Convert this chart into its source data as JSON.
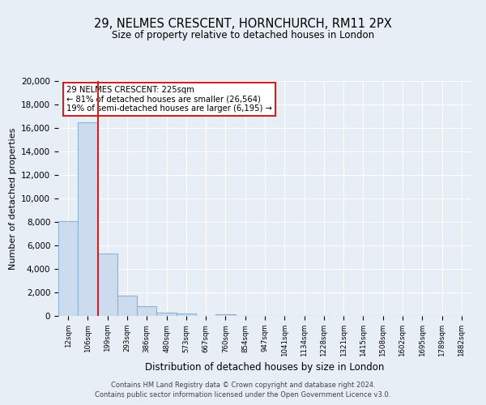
{
  "title": "29, NELMES CRESCENT, HORNCHURCH, RM11 2PX",
  "subtitle": "Size of property relative to detached houses in London",
  "xlabel": "Distribution of detached houses by size in London",
  "ylabel": "Number of detached properties",
  "bar_labels": [
    "12sqm",
    "106sqm",
    "199sqm",
    "293sqm",
    "386sqm",
    "480sqm",
    "573sqm",
    "667sqm",
    "760sqm",
    "854sqm",
    "947sqm",
    "1041sqm",
    "1134sqm",
    "1228sqm",
    "1321sqm",
    "1415sqm",
    "1508sqm",
    "1602sqm",
    "1695sqm",
    "1789sqm",
    "1882sqm"
  ],
  "bar_heights": [
    8100,
    16500,
    5300,
    1750,
    800,
    300,
    200,
    0,
    150,
    0,
    0,
    0,
    0,
    0,
    0,
    0,
    0,
    0,
    0,
    0,
    0
  ],
  "bar_color": "#ccdcee",
  "bar_edgecolor": "#8ab4d4",
  "ylim": [
    0,
    20000
  ],
  "yticks": [
    0,
    2000,
    4000,
    6000,
    8000,
    10000,
    12000,
    14000,
    16000,
    18000,
    20000
  ],
  "property_label": "29 NELMES CRESCENT: 225sqm",
  "annotation_line1": "← 81% of detached houses are smaller (26,564)",
  "annotation_line2": "19% of semi-detached houses are larger (6,195) →",
  "annotation_box_color": "#ffffff",
  "annotation_box_edgecolor": "#cc2222",
  "line_color": "#cc2222",
  "footer1": "Contains HM Land Registry data © Crown copyright and database right 2024.",
  "footer2": "Contains public sector information licensed under the Open Government Licence v3.0.",
  "background_color": "#e8eef5",
  "plot_background": "#e8eef5",
  "grid_color": "#ffffff"
}
